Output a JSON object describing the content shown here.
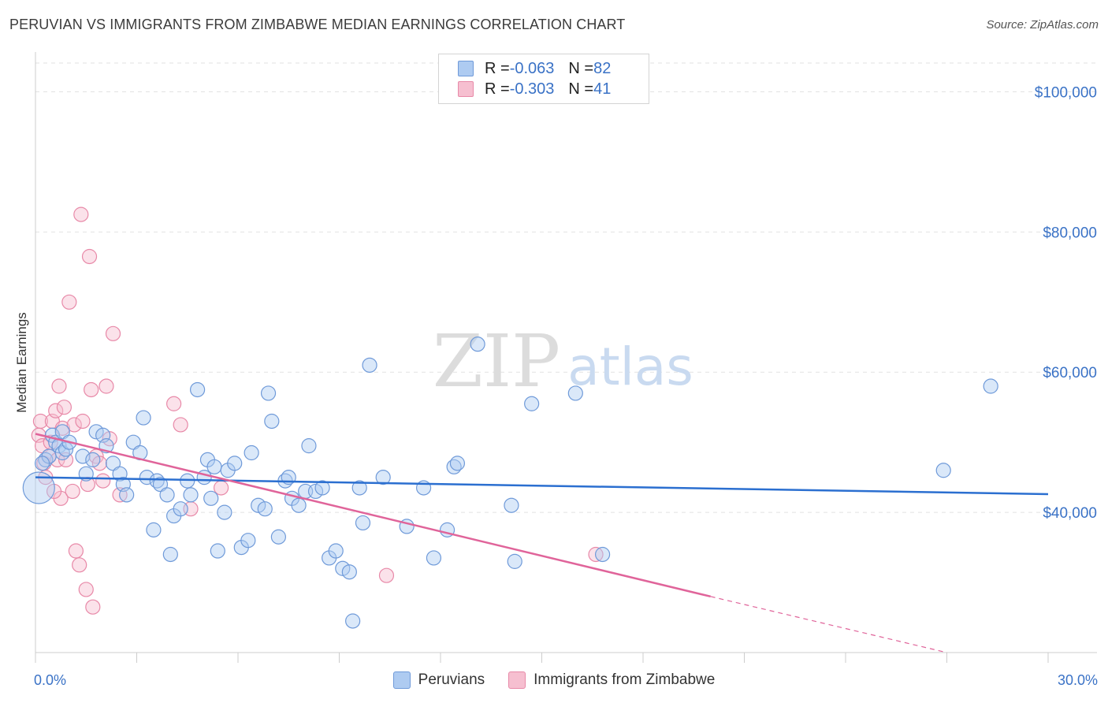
{
  "title": "PERUVIAN VS IMMIGRANTS FROM ZIMBABWE MEDIAN EARNINGS CORRELATION CHART",
  "source": "Source: ZipAtlas.com",
  "watermark": {
    "zip": "ZIP",
    "atlas": "atlas"
  },
  "colors": {
    "blue_fill": "#aecbf1",
    "blue_stroke": "#6f9ad9",
    "blue_line": "#2b6fd0",
    "pink_fill": "#f6bfd0",
    "pink_stroke": "#e889a8",
    "pink_line": "#e0649a",
    "tick_text": "#3a72c6",
    "grid": "#e2e2e2"
  },
  "legend": {
    "rows": [
      {
        "r_label": "R = ",
        "r_value": "-0.063",
        "n_label": "N = ",
        "n_value": "82",
        "color": "#aecbf1"
      },
      {
        "r_label": "R = ",
        "r_value": "-0.303",
        "n_label": "N = ",
        "n_value": "41",
        "color": "#f6bfd0"
      }
    ]
  },
  "chart_data": {
    "type": "scatter",
    "title": "PERUVIAN VS IMMIGRANTS FROM ZIMBABWE MEDIAN EARNINGS CORRELATION CHART",
    "xlabel": "",
    "ylabel": "Median Earnings",
    "xlim": [
      0,
      30
    ],
    "ylim": [
      20000,
      105000
    ],
    "x_tick_labels": [
      "0.0%",
      "30.0%"
    ],
    "y_ticks": [
      40000,
      60000,
      80000,
      100000
    ],
    "y_tick_labels": [
      "$40,000",
      "$60,000",
      "$80,000",
      "$100,000"
    ],
    "grid": true,
    "legend_position": "top-center",
    "series": [
      {
        "name": "Peruvians",
        "color": "#aecbf1",
        "trend": {
          "x": [
            0,
            30
          ],
          "y": [
            45000,
            42600
          ]
        },
        "points": [
          [
            0.1,
            43500
          ],
          [
            0.3,
            47500
          ],
          [
            0.4,
            48000
          ],
          [
            0.5,
            51000
          ],
          [
            0.6,
            50000
          ],
          [
            0.7,
            49500
          ],
          [
            0.8,
            48500
          ],
          [
            0.9,
            49000
          ],
          [
            1.4,
            48000
          ],
          [
            1.5,
            45500
          ],
          [
            1.7,
            47500
          ],
          [
            0.8,
            51500
          ],
          [
            1.8,
            51500
          ],
          [
            2.0,
            51000
          ],
          [
            2.1,
            49500
          ],
          [
            2.3,
            47000
          ],
          [
            2.5,
            45500
          ],
          [
            2.6,
            44000
          ],
          [
            2.7,
            42500
          ],
          [
            2.9,
            50000
          ],
          [
            3.1,
            48500
          ],
          [
            3.2,
            53500
          ],
          [
            3.3,
            45000
          ],
          [
            3.5,
            37500
          ],
          [
            3.6,
            44500
          ],
          [
            3.7,
            44000
          ],
          [
            3.9,
            42500
          ],
          [
            4.0,
            34000
          ],
          [
            4.1,
            39500
          ],
          [
            4.3,
            40500
          ],
          [
            4.5,
            44500
          ],
          [
            4.6,
            42500
          ],
          [
            4.8,
            57500
          ],
          [
            5.0,
            45000
          ],
          [
            5.1,
            47500
          ],
          [
            5.3,
            46500
          ],
          [
            5.4,
            34500
          ],
          [
            5.6,
            40000
          ],
          [
            5.7,
            46000
          ],
          [
            5.9,
            47000
          ],
          [
            6.1,
            35000
          ],
          [
            6.3,
            36000
          ],
          [
            6.4,
            48500
          ],
          [
            6.6,
            41000
          ],
          [
            6.8,
            40500
          ],
          [
            6.9,
            57000
          ],
          [
            7.0,
            53000
          ],
          [
            7.2,
            36500
          ],
          [
            7.4,
            44500
          ],
          [
            7.5,
            45000
          ],
          [
            7.6,
            42000
          ],
          [
            7.8,
            41000
          ],
          [
            8.0,
            43000
          ],
          [
            8.1,
            49500
          ],
          [
            8.3,
            43000
          ],
          [
            8.5,
            43500
          ],
          [
            8.7,
            33500
          ],
          [
            8.9,
            34500
          ],
          [
            9.1,
            32000
          ],
          [
            9.3,
            31500
          ],
          [
            9.4,
            24500
          ],
          [
            9.6,
            43500
          ],
          [
            9.7,
            38500
          ],
          [
            9.9,
            61000
          ],
          [
            10.3,
            45000
          ],
          [
            11.0,
            38000
          ],
          [
            11.5,
            43500
          ],
          [
            11.8,
            33500
          ],
          [
            12.2,
            37500
          ],
          [
            12.4,
            46500
          ],
          [
            12.5,
            47000
          ],
          [
            13.1,
            64000
          ],
          [
            14.1,
            41000
          ],
          [
            14.2,
            33000
          ],
          [
            14.7,
            55500
          ],
          [
            16.0,
            57000
          ],
          [
            16.8,
            34000
          ],
          [
            26.9,
            46000
          ],
          [
            28.3,
            58000
          ],
          [
            0.2,
            47000
          ],
          [
            1.0,
            50000
          ],
          [
            5.2,
            42000
          ]
        ]
      },
      {
        "name": "Immigrants from Zimbabwe",
        "color": "#f6bfd0",
        "trend": {
          "x": [
            0,
            20
          ],
          "y": [
            51200,
            28000
          ]
        },
        "trend_dashed": {
          "x": [
            20,
            27
          ],
          "y": [
            28000,
            20000
          ]
        },
        "points": [
          [
            0.1,
            51000
          ],
          [
            0.15,
            53000
          ],
          [
            0.2,
            49500
          ],
          [
            0.25,
            47000
          ],
          [
            0.3,
            45000
          ],
          [
            0.4,
            48000
          ],
          [
            0.45,
            50000
          ],
          [
            0.5,
            53000
          ],
          [
            0.6,
            54500
          ],
          [
            0.65,
            47500
          ],
          [
            0.7,
            58000
          ],
          [
            0.75,
            42000
          ],
          [
            0.8,
            52000
          ],
          [
            0.85,
            55000
          ],
          [
            0.9,
            47500
          ],
          [
            1.0,
            70000
          ],
          [
            1.1,
            43000
          ],
          [
            1.15,
            52500
          ],
          [
            1.2,
            34500
          ],
          [
            1.3,
            32500
          ],
          [
            1.35,
            82500
          ],
          [
            1.4,
            53000
          ],
          [
            1.5,
            29000
          ],
          [
            1.55,
            44000
          ],
          [
            1.6,
            76500
          ],
          [
            1.65,
            57500
          ],
          [
            1.7,
            26500
          ],
          [
            1.8,
            48000
          ],
          [
            1.9,
            47000
          ],
          [
            2.0,
            44500
          ],
          [
            2.1,
            58000
          ],
          [
            2.2,
            50500
          ],
          [
            2.3,
            65500
          ],
          [
            2.5,
            42500
          ],
          [
            4.1,
            55500
          ],
          [
            4.3,
            52500
          ],
          [
            4.6,
            40500
          ],
          [
            5.5,
            43500
          ],
          [
            10.4,
            31000
          ],
          [
            16.6,
            34000
          ],
          [
            0.55,
            43000
          ]
        ]
      }
    ]
  }
}
